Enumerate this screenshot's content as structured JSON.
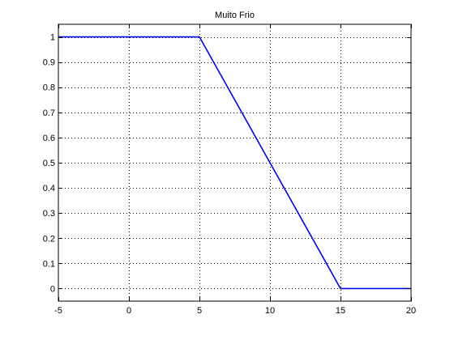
{
  "chart_data": {
    "type": "line",
    "title": "Muito Frio",
    "xlabel": "",
    "ylabel": "",
    "xlim": [
      -5,
      20
    ],
    "ylim": [
      -0.05,
      1.05
    ],
    "grid": true,
    "x_ticks": [
      -5,
      0,
      5,
      10,
      15,
      20
    ],
    "x_tick_labels": [
      "-5",
      "0",
      "5",
      "10",
      "15",
      "20"
    ],
    "y_ticks": [
      0,
      0.1,
      0.2,
      0.3,
      0.4,
      0.5,
      0.6,
      0.7,
      0.8,
      0.9,
      1
    ],
    "y_tick_labels": [
      "0",
      "0.1",
      "0.2",
      "0.3",
      "0.4",
      "0.5",
      "0.6",
      "0.7",
      "0.8",
      "0.9",
      "1"
    ],
    "series": [
      {
        "x": [
          -5,
          5,
          15,
          20
        ],
        "y": [
          1,
          1,
          0,
          0
        ],
        "color": "#0000ff"
      }
    ]
  }
}
